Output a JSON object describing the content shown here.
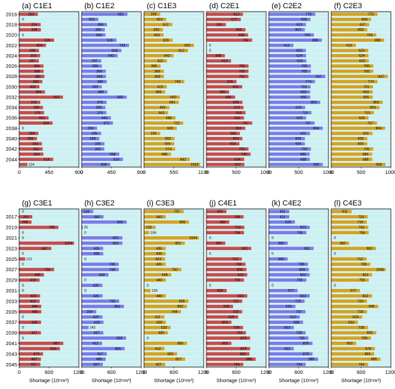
{
  "chart_data": {
    "type": "bar",
    "orientation": "horizontal",
    "colors": {
      "C1": "#c84b4b",
      "C2": "#7b7bea",
      "C3": "#d5a21f",
      "background": "#cdf0f2"
    },
    "rows": [
      {
        "years": [
          2016,
          2017,
          2018,
          2019,
          2020,
          2021,
          2022,
          2023,
          2024,
          2025,
          2026,
          2027,
          2028,
          2029,
          2030,
          2031,
          2032,
          2033,
          2034,
          2035,
          2036,
          2037,
          2038,
          2039,
          2040,
          2041,
          2042,
          2043,
          2044,
          2045
        ],
        "tick_years": [
          2016,
          2018,
          2020,
          2022,
          2024,
          2026,
          2028,
          2030,
          2032,
          2034,
          2036,
          2038,
          2040,
          2042,
          2044
        ],
        "panels": [
          {
            "label": "(a)",
            "name": "C1E1",
            "color": "#c84b4b",
            "xlim": [
              0,
              900
            ],
            "xticks": [
              0,
              450,
              900
            ],
            "xlabel": "",
            "values": [
              281,
              0,
              324,
              328,
              0,
              526,
              404,
              299,
              315,
              297,
              366,
              368,
              380,
              349,
              305,
              389,
              660,
              319,
              359,
              376,
              443,
              504,
              0,
              289,
              268,
              343,
              354,
              364,
              514,
              124
            ]
          },
          {
            "label": "(b)",
            "name": "C1E2",
            "color": "#7b7bea",
            "xlim": [
              0,
              900
            ],
            "xticks": [
              0,
              450,
              900
            ],
            "xlabel": "",
            "values": [
              691,
              252,
              384,
              350,
              359,
              526,
              714,
              600,
              543,
              297,
              306,
              366,
              368,
              380,
              305,
              389,
              680,
              376,
              359,
              376,
              443,
              472,
              234,
              295,
              268,
              345,
              343,
              568,
              624,
              434
            ]
          },
          {
            "label": "(c)",
            "name": "C1E3",
            "color": "#d5a21f",
            "xlim": [
              0,
              1100
            ],
            "xticks": [
              0,
              550,
              1100
            ],
            "xlabel": "",
            "values": [
              299,
              410,
              522,
              350,
              359,
              526,
              922,
              812,
              543,
              422,
              306,
              366,
              368,
              743,
              419,
              389,
              660,
              641,
              465,
              443,
              580,
              722,
              603,
              299,
              563,
              556,
              574,
              498,
              842,
              1033
            ]
          },
          {
            "label": "(d)",
            "name": "C2E1",
            "color": "#c84b4b",
            "xlim": [
              0,
              1000
            ],
            "xticks": [
              0,
              500,
              1000
            ],
            "xlabel": "",
            "values": [
              613,
              577,
              326,
              655,
              698,
              766,
              0,
              0,
              308,
              413,
              706,
              705,
              705,
              505,
              600,
              380,
              480,
              605,
              623,
              655,
              631,
              767,
              652,
              560,
              604,
              554,
              705,
              740,
              634,
              637
            ]
          },
          {
            "label": "(e)",
            "name": "C2E2",
            "color": "#7b7bea",
            "xlim": [
              0,
              1000
            ],
            "xticks": [
              0,
              500,
              1000
            ],
            "xlabel": "",
            "values": [
              778,
              699,
              623,
              603,
              755,
              888,
              412,
              620,
              624,
              630,
              705,
              705,
              947,
              774,
              701,
              693,
              695,
              863,
              609,
              715,
              625,
              767,
              904,
              691,
              605,
              605,
              705,
              685,
              688,
              905
            ]
          },
          {
            "label": "(f)",
            "name": "C2E3",
            "color": "#d5a21f",
            "xlim": [
              0,
              1000
            ],
            "xticks": [
              0,
              500,
              1000
            ],
            "xlabel": "",
            "values": [
              775,
              669,
              637,
              603,
              755,
              888,
              412,
              620,
              624,
              630,
              705,
              705,
              947,
              774,
              701,
              693,
              695,
              863,
              809,
              715,
              625,
              767,
              904,
              691,
              605,
              605,
              705,
              685,
              688,
              909
            ]
          }
        ]
      },
      {
        "years": [
          2016,
          2017,
          2018,
          2019,
          2020,
          2021,
          2022,
          2023,
          2024,
          2025,
          2026,
          2027,
          2028,
          2029,
          2030,
          2031,
          2032,
          2033,
          2034,
          2035,
          2036,
          2037,
          2038,
          2039,
          2040,
          2041,
          2042,
          2043,
          2044,
          2045
        ],
        "tick_years": [
          2017,
          2019,
          2021,
          2023,
          2025,
          2027,
          2029,
          2031,
          2033,
          2035,
          2037,
          2039,
          2041,
          2043,
          2045
        ],
        "panels": [
          {
            "label": "(g)",
            "name": "C3E1",
            "color": "#c84b4b",
            "xlim": [
              0,
              1200
            ],
            "xticks": [
              0,
              600,
              1200
            ],
            "xlabel": "Shortage (10⁶m³)",
            "values": [
              0,
              263,
              248,
              788,
              0,
              0,
              1104,
              647,
              0,
              121,
              0,
              702,
              498,
              410,
              0,
              0,
              420,
              412,
              444,
              445,
              0,
              439,
              0,
              437,
              0,
              887,
              819,
              479,
              437,
              427
            ]
          },
          {
            "label": "(h)",
            "name": "C3E2",
            "color": "#7b7bea",
            "xlim": [
              0,
              1200
            ],
            "xticks": [
              0,
              600,
              1200
            ],
            "xlabel": "Shortage (10⁶m³)",
            "values": [
              233,
              440,
              906,
              25,
              0,
              821,
              821,
              435,
              435,
              0,
              746,
              749,
              542,
              0,
              420,
              0,
              420,
              755,
              851,
              294,
              420,
              439,
              142,
              437,
              895,
              412,
              866,
              507,
              485,
              427
            ]
          },
          {
            "label": "(i)",
            "name": "C3E3",
            "color": "#d5a21f",
            "xlim": [
              0,
              1200
            ],
            "xticks": [
              0,
              600,
              1200
            ],
            "xlabel": "Shortage (10⁶m³)",
            "values": [
              797,
              440,
              905,
              232,
              106,
              1104,
              821,
              435,
              435,
              423,
              435,
              750,
              548,
              440,
              0,
              130,
              440,
              895,
              862,
              744,
              411,
              439,
              533,
              480,
              0,
              865,
              412,
              665,
              827,
              427
            ]
          },
          {
            "label": "(j)",
            "name": "C4E1",
            "color": "#c84b4b",
            "xlim": [
              0,
              1200
            ],
            "xticks": [
              0,
              600,
              1200
            ],
            "xlabel": "Shortage (10⁶m³)",
            "values": [
              403,
              748,
              460,
              763,
              755,
              0,
              380,
              902,
              0,
              712,
              786,
              806,
              822,
              755,
              0,
              409,
              822,
              720,
              535,
              720,
              639,
              503,
              738,
              795,
              878,
              503,
              878,
              865,
              989,
              743
            ]
          },
          {
            "label": "(k)",
            "name": "C4E2",
            "color": "#7b7bea",
            "xlim": [
              0,
              1200
            ],
            "xticks": [
              0,
              600,
              1200
            ],
            "xlabel": "Shortage (10⁶m³)",
            "values": [
              411,
              411,
              525,
              823,
              755,
              0,
              380,
              902,
              0,
              380,
              788,
              806,
              822,
              755,
              0,
              577,
              822,
              720,
              535,
              737,
              622,
              688,
              503,
              738,
              795,
              878,
              503,
              878,
              989,
              743
            ]
          },
          {
            "label": "(l)",
            "name": "C4E3",
            "color": "#d5a21f",
            "xlim": [
              0,
              1200
            ],
            "xticks": [
              0,
              600,
              1200
            ],
            "xlabel": "Shortage (10⁶m³)",
            "values": [
              411,
              733,
              715,
              742,
              755,
              0,
              360,
              902,
              0,
              712,
              786,
              1096,
              822,
              755,
              0,
              577,
              822,
              720,
              945,
              720,
              624,
              533,
              738,
              905,
              799,
              503,
              878,
              865,
              989,
              743
            ]
          }
        ]
      }
    ]
  }
}
